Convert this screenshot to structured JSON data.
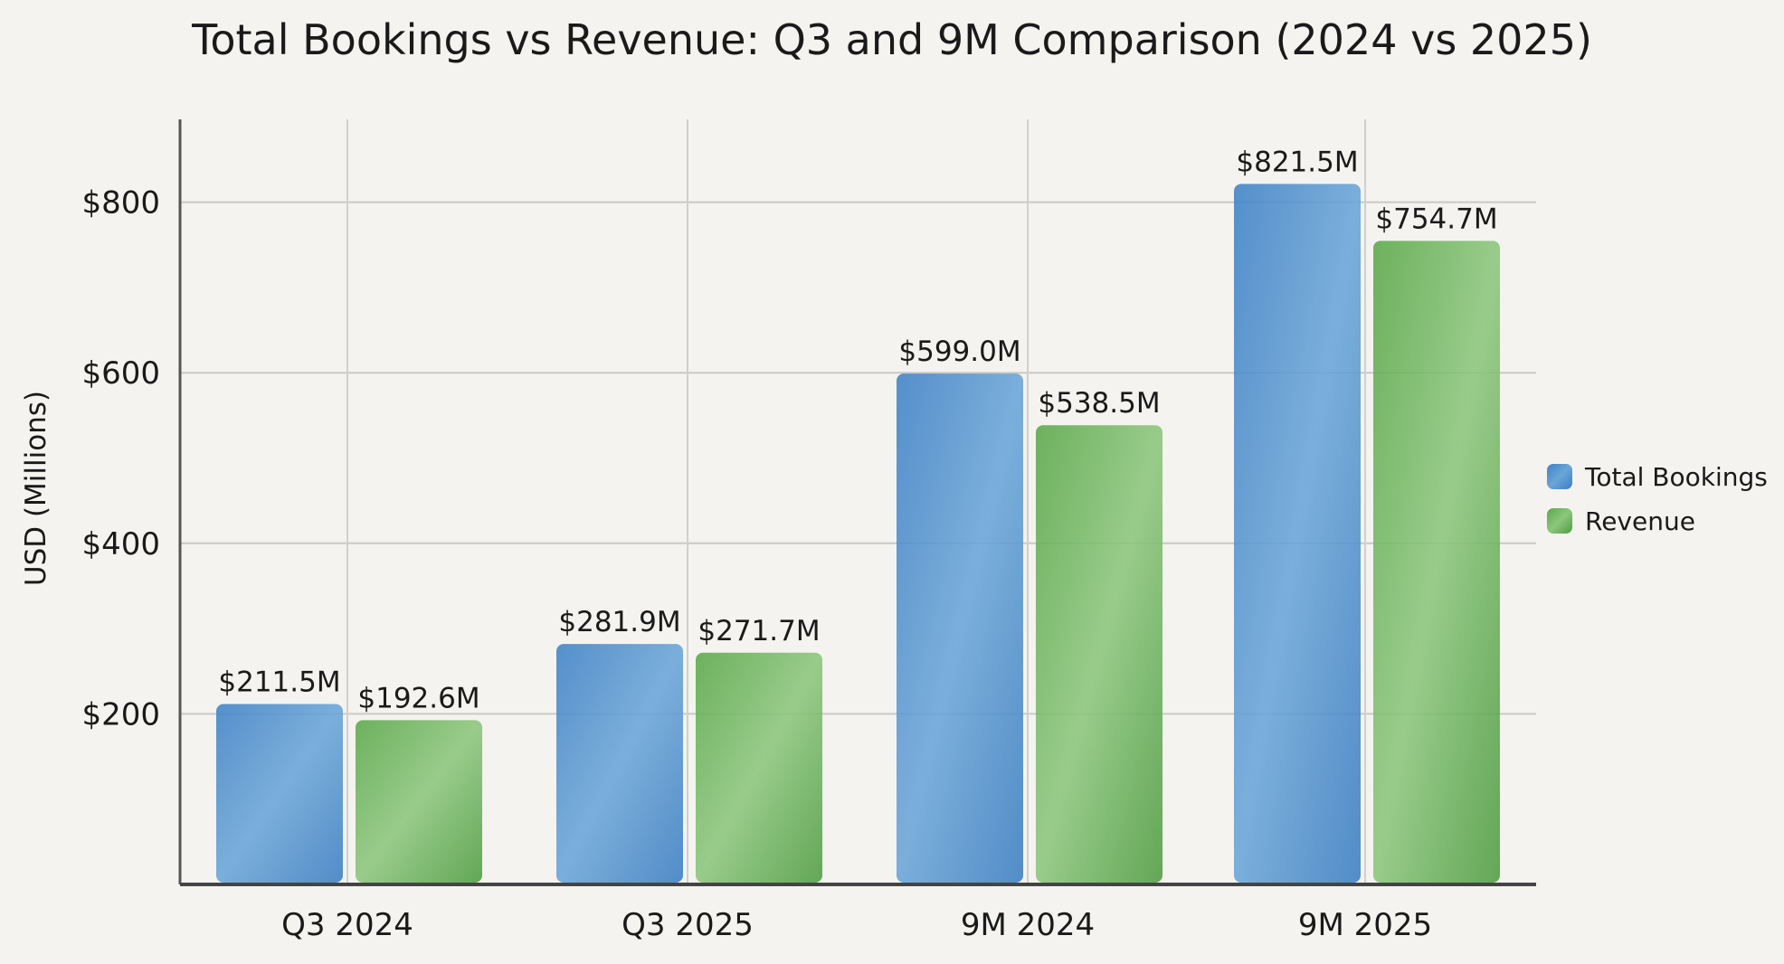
{
  "chart_data": {
    "type": "bar",
    "title": "Total Bookings vs Revenue: Q3 and 9M Comparison (2024 vs 2025)",
    "xlabel": "",
    "ylabel": "USD (Millions)",
    "ylim": [
      0,
      900
    ],
    "yticks": [
      200,
      400,
      600,
      800
    ],
    "ytick_labels": [
      "$200",
      "$400",
      "$600",
      "$800"
    ],
    "grid": true,
    "legend_position": "right",
    "categories": [
      "Q3 2024",
      "Q3 2025",
      "9M 2024",
      "9M 2025"
    ],
    "series": [
      {
        "name": "Total Bookings",
        "color": "#4a8ccc",
        "values": [
          211.5,
          281.9,
          599.0,
          821.5
        ],
        "labels": [
          "$211.5M",
          "$281.9M",
          "$599.0M",
          "$821.5M"
        ]
      },
      {
        "name": "Revenue",
        "color": "#6bb35a",
        "values": [
          192.6,
          271.7,
          538.5,
          754.7
        ],
        "labels": [
          "$192.6M",
          "$271.7M",
          "$538.5M",
          "$754.7M"
        ]
      }
    ]
  }
}
